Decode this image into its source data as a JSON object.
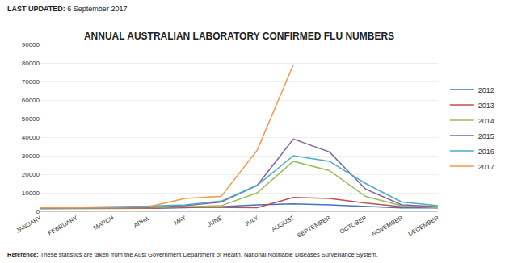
{
  "chart_data": {
    "type": "line",
    "title": "ANNUAL AUSTRALIAN LABORATORY CONFIRMED FLU NUMBERS",
    "annotations": [
      "LAST UPDATED: 6 September 2017",
      "Reference: These statistics are taken from the Aust Government Department of Health, National Notifiable Diseases Surveillance System."
    ],
    "categories": [
      "JANUARY",
      "FEBRUARY",
      "MARCH",
      "APRIL",
      "MAY",
      "JUNE",
      "JULY",
      "AUGUST",
      "SEPTEMBER",
      "OCTOBER",
      "NOVEMBER",
      "DECEMBER"
    ],
    "series": [
      {
        "name": "2012",
        "color": "#4472C4",
        "values": [
          1500,
          1500,
          1500,
          1600,
          2000,
          2500,
          3500,
          4000,
          3500,
          2500,
          1800,
          1800
        ]
      },
      {
        "name": "2013",
        "color": "#C0504D",
        "values": [
          1500,
          1500,
          1500,
          1600,
          2200,
          2000,
          2000,
          7500,
          7000,
          4500,
          2500,
          2000
        ]
      },
      {
        "name": "2014",
        "color": "#9BBB59",
        "values": [
          1500,
          1500,
          1800,
          2000,
          2500,
          3000,
          10000,
          27000,
          22000,
          8000,
          3000,
          2000
        ]
      },
      {
        "name": "2015",
        "color": "#8064A2",
        "values": [
          1800,
          2000,
          2000,
          2200,
          3000,
          5000,
          14000,
          39000,
          32000,
          12000,
          3500,
          2500
        ]
      },
      {
        "name": "2016",
        "color": "#4BACC6",
        "values": [
          2000,
          2200,
          2500,
          2800,
          3500,
          5500,
          14000,
          30000,
          27000,
          15000,
          5000,
          3000
        ]
      },
      {
        "name": "2017",
        "color": "#F79646",
        "values": [
          2000,
          2000,
          2200,
          2500,
          7000,
          8000,
          33000,
          79000,
          null,
          null,
          null,
          null
        ]
      }
    ],
    "ylim": [
      0,
      90000
    ],
    "yticks": [
      0,
      10000,
      20000,
      30000,
      40000,
      50000,
      60000,
      70000,
      80000,
      90000
    ],
    "grid": true,
    "legend": "right"
  }
}
